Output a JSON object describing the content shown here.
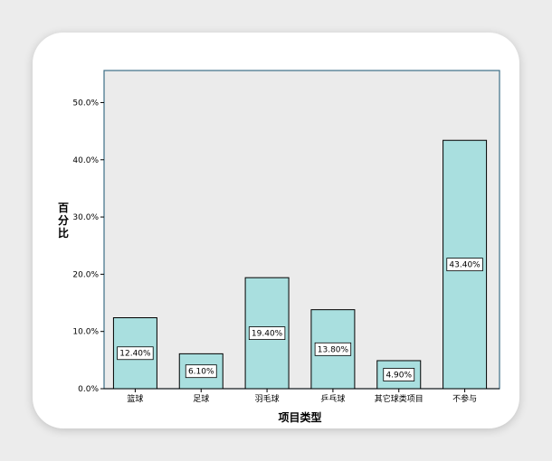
{
  "chart_data": {
    "type": "bar",
    "categories": [
      "篮球",
      "足球",
      "羽毛球",
      "乒乓球",
      "其它球类项目",
      "不参与"
    ],
    "values": [
      12.4,
      6.1,
      19.4,
      13.8,
      4.9,
      43.4
    ],
    "value_labels": [
      "12.40%",
      "6.10%",
      "19.40%",
      "13.80%",
      "4.90%",
      "43.40%"
    ],
    "xlabel": "项目类型",
    "ylabel": "百分比",
    "ylim": [
      0,
      50
    ],
    "yticks": [
      0,
      10,
      20,
      30,
      40,
      50
    ],
    "ytick_labels": [
      "0.0%",
      "10.0%",
      "20.0%",
      "30.0%",
      "40.0%",
      "50.0%"
    ],
    "grid": false,
    "colors": {
      "bar_fill": "#a9dfdf",
      "bar_stroke": "#000000",
      "plot_bg": "#ebebeb",
      "plot_border": "#3c6e87"
    }
  }
}
